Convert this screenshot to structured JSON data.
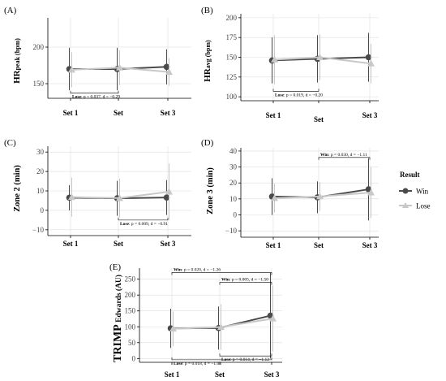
{
  "legend": {
    "title": "Result",
    "win": "Win",
    "lose": "Lose"
  },
  "colors": {
    "win": "#4a4a4a",
    "lose": "#c8c8c8",
    "axis": "#000000",
    "grid": "#dddddd"
  },
  "chart_data": [
    {
      "panel": "(A)",
      "type": "line",
      "ylabel_main": "HR",
      "ylabel_sub": "peak (bpm)",
      "categories": [
        "Set 1",
        "Set",
        "Set 3"
      ],
      "yticks": [
        150,
        200
      ],
      "ylim": [
        130,
        240
      ],
      "series": [
        {
          "name": "Win",
          "values": [
            170,
            170,
            173
          ],
          "err": [
            29,
            29,
            24
          ]
        },
        {
          "name": "Lose",
          "values": [
            169,
            172,
            166
          ],
          "err": [
            24,
            24,
            19
          ]
        }
      ],
      "annotations": [
        {
          "label": "Lose",
          "text": ": p = 0.037, d = −0.29",
          "from": 0,
          "to": 1,
          "side": "below",
          "y": 137
        }
      ]
    },
    {
      "panel": "(B)",
      "type": "line",
      "ylabel_main": "HR",
      "ylabel_sub": "avg (bpm)",
      "categories": [
        "Set 1",
        "Set",
        "Set 3"
      ],
      "yticks": [
        100,
        125,
        150,
        175,
        200
      ],
      "ylim": [
        95,
        205
      ],
      "series": [
        {
          "name": "Win",
          "values": [
            146,
            148,
            150
          ],
          "err": [
            29,
            30,
            31
          ]
        },
        {
          "name": "Lose",
          "values": [
            147,
            150,
            142
          ],
          "err": [
            31,
            29,
            25
          ]
        }
      ],
      "annotations": [
        {
          "label": "Lose",
          "text": ": p = 0.019, d = −0.20",
          "from": 0,
          "to": 1,
          "side": "below",
          "y": 107
        }
      ]
    },
    {
      "panel": "(C)",
      "type": "line",
      "ylabel_main": "Zone 2 (min)",
      "ylabel_sub": "",
      "categories": [
        "Set 1",
        "Set",
        "Set 3"
      ],
      "yticks": [
        -10,
        0,
        10,
        20,
        30
      ],
      "ylim": [
        -13,
        33
      ],
      "series": [
        {
          "name": "Win",
          "values": [
            6.5,
            6.2,
            6.6
          ],
          "err": [
            6.5,
            9,
            9
          ]
        },
        {
          "name": "Lose",
          "values": [
            6.8,
            6.3,
            9.6
          ],
          "err": [
            10,
            10,
            14.5
          ]
        }
      ],
      "annotations": [
        {
          "label": "Lose",
          "text": ": p = 0.009, d = −0.91",
          "from": 1,
          "to": 2,
          "side": "below",
          "y": -5
        }
      ]
    },
    {
      "panel": "(D)",
      "type": "line",
      "ylabel_main": "Zone 3 (min)",
      "ylabel_sub": "",
      "categories": [
        "Set 1",
        "Set",
        "Set 3"
      ],
      "yticks": [
        -10,
        0,
        10,
        20,
        30,
        40
      ],
      "ylim": [
        -14,
        42
      ],
      "series": [
        {
          "name": "Win",
          "values": [
            11.5,
            11,
            16
          ],
          "err": [
            11.5,
            10,
            19.5
          ]
        },
        {
          "name": "Lose",
          "values": [
            10.5,
            11.5,
            14
          ],
          "err": [
            9,
            9,
            16
          ]
        }
      ],
      "annotations": [
        {
          "label": "Win",
          "text": ": p = 0.030, d = −1.11",
          "from": 1,
          "to": 2,
          "side": "above",
          "y": 36
        }
      ]
    },
    {
      "panel": "(E)",
      "type": "line",
      "ylabel_main": "TRIMP",
      "ylabel_sub": " Edwards (AU)",
      "categories": [
        "Set 1",
        "Set",
        "Set 3"
      ],
      "yticks": [
        0,
        50,
        100,
        150,
        200,
        250
      ],
      "ylim": [
        -12,
        285
      ],
      "series": [
        {
          "name": "Win",
          "values": [
            95,
            96,
            135
          ],
          "err": [
            62,
            68,
            135
          ]
        },
        {
          "name": "Lose",
          "values": [
            94,
            99,
            126
          ],
          "err": [
            54,
            72,
            104
          ]
        }
      ],
      "annotations": [
        {
          "label": "Win",
          "text": ": p = 0.020, d = −1.26",
          "from": 0,
          "to": 2,
          "side": "above",
          "y": 271
        },
        {
          "label": "Win",
          "text": ": p = 0.005, d = −1.50",
          "from": 1,
          "to": 2,
          "side": "above",
          "y": 240
        },
        {
          "label": "Lose",
          "text": ": p = 0.014, d = −1.12",
          "from": 1,
          "to": 2,
          "side": "below",
          "y": 8
        },
        {
          "label": "Lose",
          "text": ": p = 0.018, d = −1.08",
          "from": 0,
          "to": 2,
          "side": "below",
          "y": -4
        }
      ]
    }
  ]
}
